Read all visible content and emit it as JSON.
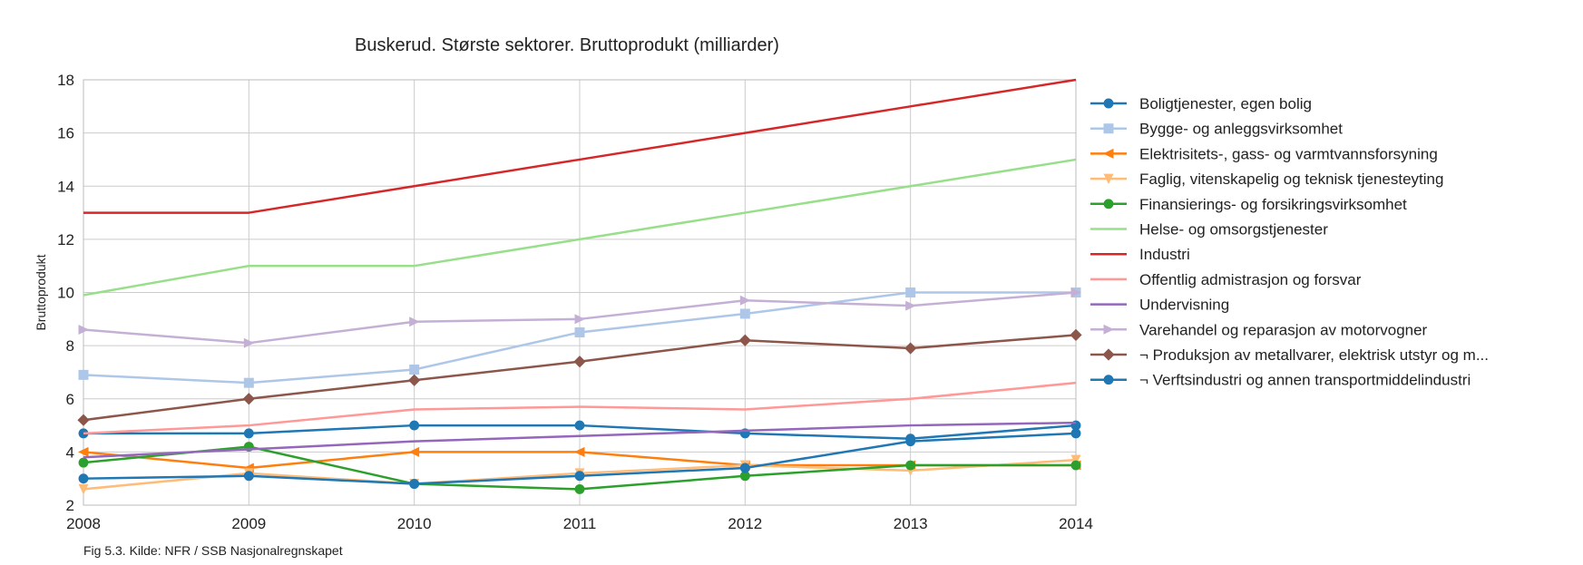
{
  "chart_data": {
    "type": "line",
    "title": "Buskerud. Største sektorer. Bruttoprodukt (milliarder)",
    "xlabel": "",
    "ylabel": "Bruttoprodukt",
    "caption": "Fig 5.3. Kilde: NFR / SSB Nasjonalregnskapet",
    "x": [
      2008,
      2009,
      2010,
      2011,
      2012,
      2013,
      2014
    ],
    "x_tick_labels": [
      "2008",
      "2009",
      "2010",
      "2011",
      "2012",
      "2013",
      "2014"
    ],
    "xlim": [
      2008,
      2014
    ],
    "ylim": [
      2,
      18
    ],
    "y_ticks": [
      2,
      4,
      6,
      8,
      10,
      12,
      14,
      16,
      18
    ],
    "y_tick_labels": [
      "2",
      "4",
      "6",
      "8",
      "10",
      "12",
      "14",
      "16",
      "18"
    ],
    "grid": true,
    "legend_position": "right",
    "series": [
      {
        "name": "Boligtjenester, egen bolig",
        "color": "#1f77b4",
        "marker": "circle",
        "values": [
          4.7,
          4.7,
          5.0,
          5.0,
          4.7,
          4.5,
          5.0
        ]
      },
      {
        "name": "Bygge- og anleggsvirksomhet",
        "color": "#aec7e8",
        "marker": "square",
        "values": [
          6.9,
          6.6,
          7.1,
          8.5,
          9.2,
          10.0,
          10.0
        ]
      },
      {
        "name": "Elektrisitets-, gass- og varmtvannsforsyning",
        "color": "#ff7f0e",
        "marker": "triangle-left",
        "values": [
          4.0,
          3.4,
          4.0,
          4.0,
          3.5,
          3.5,
          3.5
        ]
      },
      {
        "name": "Faglig, vitenskapelig og teknisk tjenesteyting",
        "color": "#ffbb78",
        "marker": "triangle-down",
        "values": [
          2.6,
          3.2,
          2.8,
          3.2,
          3.5,
          3.3,
          3.7
        ]
      },
      {
        "name": "Finansierings- og forsikringsvirksomhet",
        "color": "#2ca02c",
        "marker": "circle",
        "values": [
          3.6,
          4.2,
          2.8,
          2.6,
          3.1,
          3.5,
          3.5
        ]
      },
      {
        "name": "Helse- og omsorgstjenester",
        "color": "#98df8a",
        "marker": "none",
        "values": [
          9.9,
          11.0,
          11.0,
          12.0,
          13.0,
          14.0,
          15.0
        ]
      },
      {
        "name": "Industri",
        "color": "#d62728",
        "marker": "none",
        "values": [
          13.0,
          13.0,
          14.0,
          15.0,
          16.0,
          17.0,
          18.0
        ]
      },
      {
        "name": "Offentlig admistrasjon og forsvar",
        "color": "#ff9896",
        "marker": "none",
        "values": [
          4.7,
          5.0,
          5.6,
          5.7,
          5.6,
          6.0,
          6.6
        ]
      },
      {
        "name": "Undervisning",
        "color": "#9467bd",
        "marker": "none",
        "values": [
          3.8,
          4.1,
          4.4,
          4.6,
          4.8,
          5.0,
          5.1
        ]
      },
      {
        "name": "Varehandel og reparasjon av motorvogner",
        "color": "#c5b0d5",
        "marker": "triangle-right",
        "values": [
          8.6,
          8.1,
          8.9,
          9.0,
          9.7,
          9.5,
          10.0
        ]
      },
      {
        "name": "¬ Produksjon av metallvarer, elektrisk utstyr og m...",
        "color": "#8c564b",
        "marker": "diamond",
        "values": [
          5.2,
          6.0,
          6.7,
          7.4,
          8.2,
          7.9,
          8.4
        ]
      },
      {
        "name": "¬ Verftsindustri og annen transportmiddelindustri",
        "color": "#1f77b4",
        "marker": "circle",
        "values": [
          3.0,
          3.1,
          2.8,
          3.1,
          3.4,
          4.4,
          4.7
        ]
      }
    ]
  }
}
